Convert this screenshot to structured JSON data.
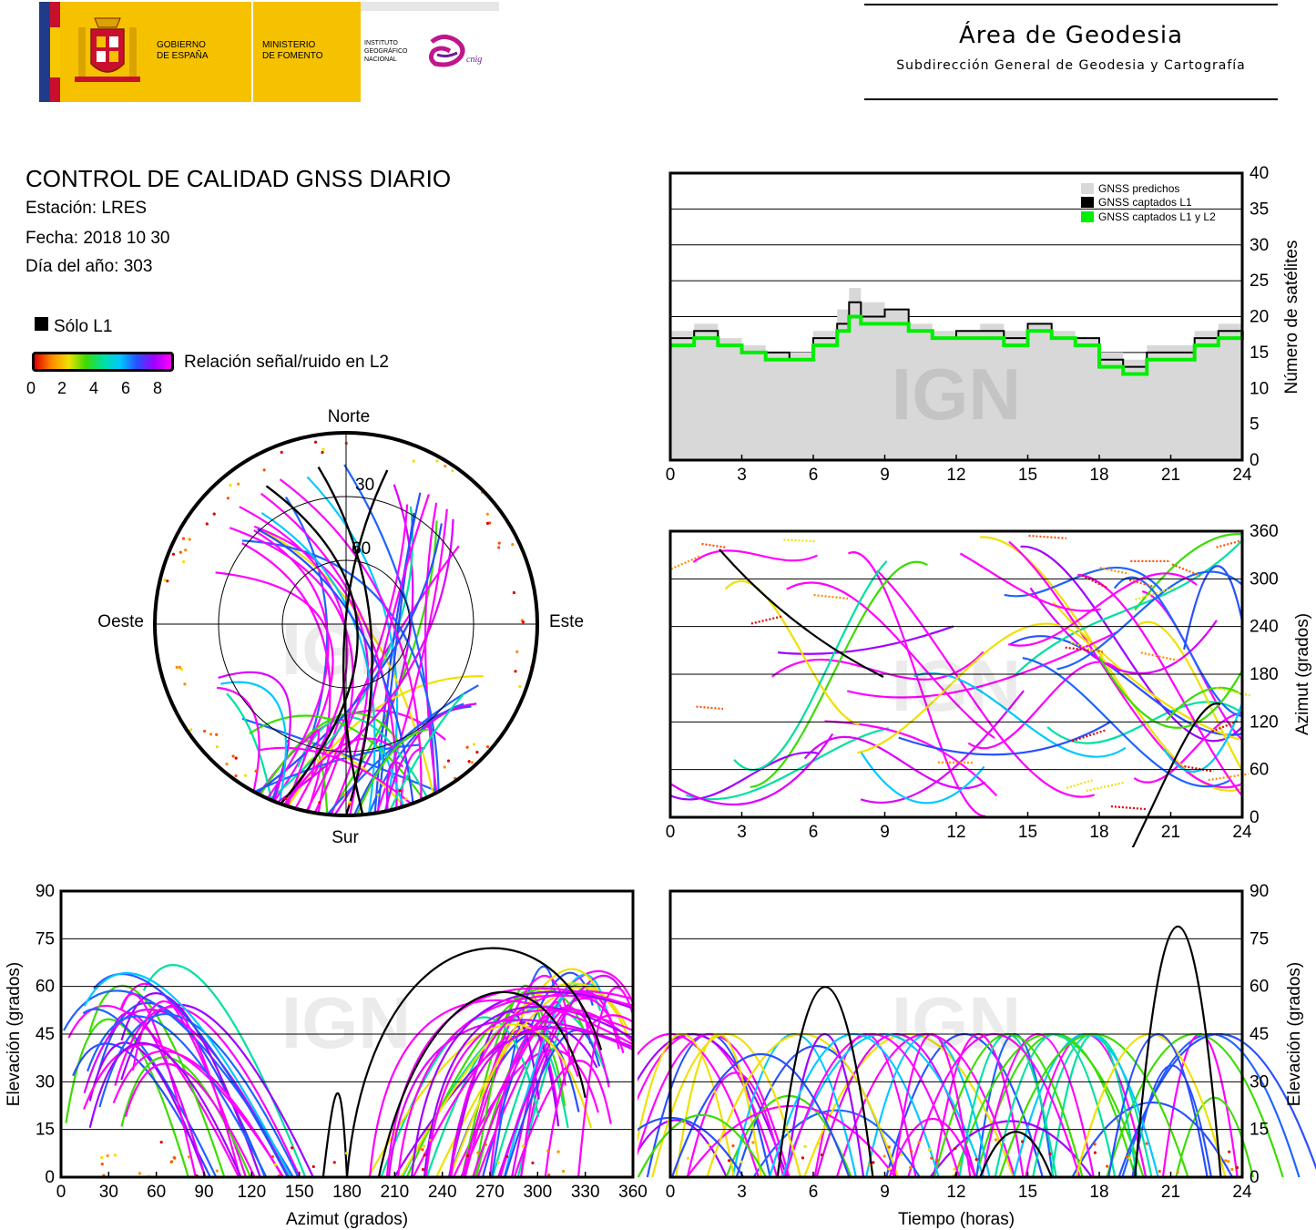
{
  "header": {
    "gov_line1": "GOBIERNO",
    "gov_line2": "DE ESPAÑA",
    "min_line1": "MINISTERIO",
    "min_line2": "DE FOMENTO",
    "ign_line1": "INSTITUTO",
    "ign_line2": "GEOGRÁFICO",
    "ign_line3": "NACIONAL",
    "cnig": "cnig",
    "area_title": "Área de Geodesia",
    "area_subtitle": "Subdirección General de Geodesia y Cartografía",
    "colors": {
      "flag_red": "#c8102e",
      "flag_yellow": "#f6c800",
      "ministry_yellow": "#f6c200",
      "eu_blue": "#1f3c8a"
    }
  },
  "report": {
    "title": "CONTROL DE CALIDAD GNSS DIARIO",
    "station": "Estación: LRES",
    "date": "Fecha: 2018 10 30",
    "doy": "Día del año: 303"
  },
  "legend": {
    "l1_only": "Sólo L1",
    "snr_label": "Relación señal/ruido en L2",
    "snr_ticks": [
      "0",
      "2",
      "4",
      "6",
      "8"
    ]
  },
  "watermark": "IGN",
  "chart_data": [
    {
      "id": "skyplot",
      "type": "scatter",
      "labels": {
        "north": "Norte",
        "south": "Sur",
        "east": "Este",
        "west": "Oeste"
      },
      "rings": [
        "30",
        "60"
      ]
    },
    {
      "id": "satellite_count",
      "type": "area",
      "ylabel": "Número de satélites",
      "ylim": [
        0,
        40
      ],
      "yticks": [
        "0",
        "5",
        "10",
        "15",
        "20",
        "25",
        "30",
        "35",
        "40"
      ],
      "xlim": [
        0,
        24
      ],
      "xticks": [
        "0",
        "3",
        "6",
        "9",
        "12",
        "15",
        "18",
        "21",
        "24"
      ],
      "grid": true,
      "legend_position": "top-right",
      "series": [
        {
          "name": "GNSS predichos",
          "color": "#d8d8d8",
          "x": [
            0,
            1,
            2,
            3,
            4,
            5,
            6,
            7,
            7.5,
            8,
            9,
            10,
            11,
            12,
            13,
            14,
            15,
            16,
            17,
            18,
            19,
            20,
            21,
            22,
            23,
            24
          ],
          "values": [
            18,
            19,
            17,
            16,
            15,
            15,
            18,
            21,
            24,
            22,
            21,
            19,
            18,
            18,
            19,
            18,
            19,
            18,
            17,
            15,
            14,
            16,
            16,
            18,
            19,
            20
          ]
        },
        {
          "name": "GNSS captados L1",
          "color": "#000000",
          "x": [
            0,
            1,
            2,
            3,
            4,
            5,
            6,
            7,
            7.5,
            8,
            9,
            10,
            11,
            12,
            13,
            14,
            15,
            16,
            17,
            18,
            19,
            20,
            21,
            22,
            23,
            24
          ],
          "values": [
            17,
            18,
            16,
            15,
            15,
            14,
            17,
            19,
            22,
            20,
            21,
            18,
            17,
            18,
            18,
            17,
            19,
            17,
            17,
            14,
            13,
            15,
            15,
            17,
            18,
            19
          ]
        },
        {
          "name": "GNSS captados L1 y L2",
          "color": "#00ee00",
          "x": [
            0,
            1,
            2,
            3,
            4,
            5,
            6,
            7,
            7.5,
            8,
            9,
            10,
            11,
            12,
            13,
            14,
            15,
            16,
            17,
            18,
            19,
            20,
            21,
            22,
            23,
            24
          ],
          "values": [
            16,
            17,
            16,
            15,
            14,
            14,
            16,
            18,
            20,
            19,
            19,
            18,
            17,
            17,
            17,
            16,
            18,
            17,
            16,
            13,
            12,
            14,
            14,
            16,
            17,
            18
          ]
        }
      ]
    },
    {
      "id": "azimuth_time",
      "type": "scatter",
      "ylabel": "Azimut (grados)",
      "ylim": [
        0,
        360
      ],
      "yticks": [
        "0",
        "60",
        "120",
        "180",
        "240",
        "300",
        "360"
      ],
      "xlim": [
        0,
        24
      ],
      "xticks": [
        "0",
        "3",
        "6",
        "9",
        "12",
        "15",
        "18",
        "21",
        "24"
      ],
      "grid": true
    },
    {
      "id": "elevation_azimuth",
      "type": "scatter",
      "xlabel": "Azimut (grados)",
      "ylabel": "Elevación (grados)",
      "xlim": [
        0,
        360
      ],
      "ylim": [
        0,
        90
      ],
      "xticks": [
        "0",
        "30",
        "60",
        "90",
        "120",
        "150",
        "180",
        "210",
        "240",
        "270",
        "300",
        "330",
        "360"
      ],
      "yticks": [
        "0",
        "15",
        "30",
        "45",
        "60",
        "75",
        "90"
      ],
      "grid": true
    },
    {
      "id": "elevation_time",
      "type": "scatter",
      "xlabel": "Tiempo (horas)",
      "ylabel": "Elevación (grados)",
      "xlim": [
        0,
        24
      ],
      "ylim": [
        0,
        90
      ],
      "xticks": [
        "0",
        "3",
        "6",
        "9",
        "12",
        "15",
        "18",
        "21",
        "24"
      ],
      "yticks": [
        "0",
        "15",
        "30",
        "45",
        "60",
        "75",
        "90"
      ],
      "grid": true
    }
  ]
}
